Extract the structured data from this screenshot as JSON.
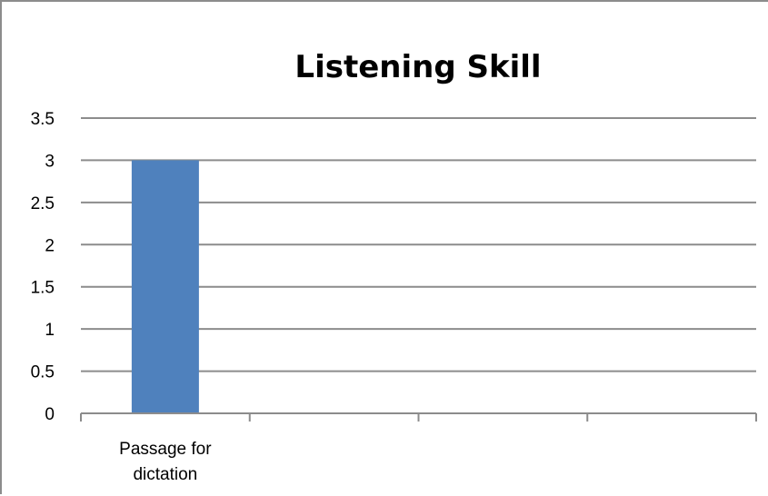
{
  "chart_data": {
    "type": "bar",
    "title": "Listening Skill",
    "xlabel": "",
    "ylabel": "",
    "categories": [
      "Passage for dictation",
      "",
      "",
      ""
    ],
    "category_lines": [
      [
        "Passage for",
        "dictation"
      ],
      [],
      [],
      []
    ],
    "values": [
      3,
      null,
      null,
      null
    ],
    "ylim": [
      0,
      3.5
    ],
    "yticks": [
      "0",
      "0.5",
      "1",
      "1.5",
      "2",
      "2.5",
      "3",
      "3.5"
    ],
    "grid": true,
    "legend": "none",
    "colors": {
      "bar": "#4f81bd",
      "grid": "#8c8c8c",
      "axis": "#8c8c8c"
    }
  }
}
